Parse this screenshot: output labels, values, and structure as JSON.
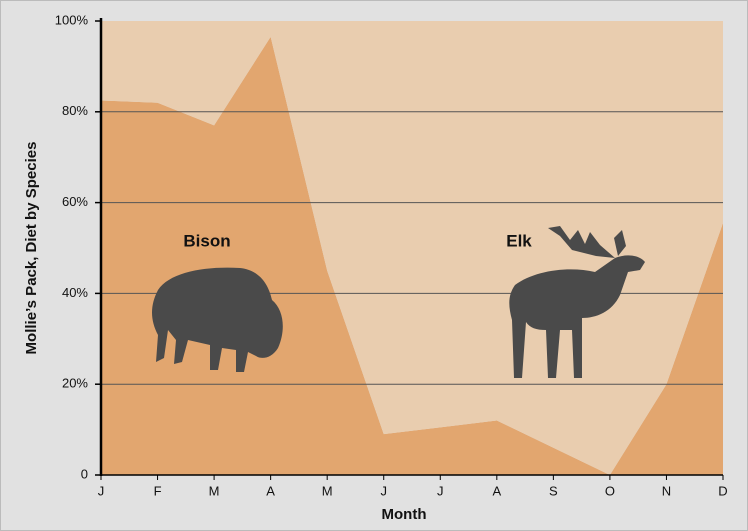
{
  "chart_data": {
    "type": "area",
    "stacked": true,
    "x_label": "Month",
    "y_label": "Mollie’s Pack, Diet by Species",
    "categories": [
      "J",
      "F",
      "M",
      "A",
      "M",
      "J",
      "J",
      "A",
      "S",
      "O",
      "N",
      "D"
    ],
    "series": [
      {
        "name": "Bison",
        "color": "#e2a66f",
        "values": [
          82.5,
          82,
          77,
          96.5,
          45,
          9,
          10.5,
          12,
          6,
          0,
          20,
          55.5
        ]
      },
      {
        "name": "Elk",
        "color": "#e9cdaf",
        "values": [
          17.5,
          18,
          23,
          3.5,
          55,
          91,
          89.5,
          88,
          94,
          100,
          80,
          44.5
        ]
      }
    ],
    "ylim": [
      0,
      100
    ],
    "yticks": [
      0,
      {
        "value": 20,
        "label": "20%"
      },
      {
        "value": 40,
        "label": "40%"
      },
      {
        "value": 60,
        "label": "60%"
      },
      {
        "value": 80,
        "label": "80%"
      },
      {
        "value": 100,
        "label": "100%"
      }
    ],
    "grid": true
  }
}
